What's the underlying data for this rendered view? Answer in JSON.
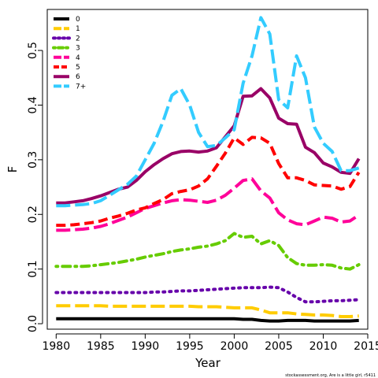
{
  "chart_data": {
    "type": "line",
    "xlabel": "Year",
    "ylabel": "F",
    "xlim": [
      1979,
      2015
    ],
    "ylim": [
      -0.01,
      0.575
    ],
    "xticks": [
      "1980",
      "1985",
      "1990",
      "1995",
      "2000",
      "2005",
      "2010",
      "2015"
    ],
    "yticks": [
      "0.0",
      "0.1",
      "0.2",
      "0.3",
      "0.4",
      "0.5"
    ],
    "legend_position": "top-left",
    "footnote": "stockassessment.org, Are is a little girl, r5411",
    "x": [
      1980,
      1981,
      1982,
      1983,
      1984,
      1985,
      1986,
      1987,
      1988,
      1989,
      1990,
      1991,
      1992,
      1993,
      1994,
      1995,
      1996,
      1997,
      1998,
      1999,
      2000,
      2001,
      2002,
      2003,
      2004,
      2005,
      2006,
      2007,
      2008,
      2009,
      2010,
      2011,
      2012,
      2013,
      2014
    ],
    "series": [
      {
        "name": "0",
        "color": "#000000",
        "dash": "solid",
        "values": [
          0.009,
          0.009,
          0.009,
          0.009,
          0.009,
          0.009,
          0.009,
          0.009,
          0.009,
          0.009,
          0.009,
          0.009,
          0.009,
          0.009,
          0.009,
          0.009,
          0.009,
          0.009,
          0.009,
          0.009,
          0.009,
          0.008,
          0.008,
          0.006,
          0.005,
          0.005,
          0.006,
          0.006,
          0.006,
          0.005,
          0.005,
          0.005,
          0.005,
          0.005,
          0.006
        ]
      },
      {
        "name": "1",
        "color": "#ffcc00",
        "dash": "long",
        "values": [
          0.033,
          0.033,
          0.033,
          0.033,
          0.033,
          0.033,
          0.032,
          0.032,
          0.032,
          0.032,
          0.032,
          0.032,
          0.032,
          0.032,
          0.032,
          0.032,
          0.031,
          0.031,
          0.031,
          0.03,
          0.029,
          0.029,
          0.029,
          0.025,
          0.02,
          0.02,
          0.02,
          0.018,
          0.017,
          0.016,
          0.016,
          0.015,
          0.013,
          0.013,
          0.014
        ]
      },
      {
        "name": "2",
        "color": "#6600aa",
        "dash": "dot",
        "values": [
          0.057,
          0.057,
          0.057,
          0.057,
          0.057,
          0.057,
          0.057,
          0.057,
          0.057,
          0.057,
          0.057,
          0.058,
          0.058,
          0.059,
          0.06,
          0.06,
          0.061,
          0.062,
          0.063,
          0.064,
          0.065,
          0.066,
          0.066,
          0.066,
          0.067,
          0.066,
          0.058,
          0.048,
          0.04,
          0.04,
          0.041,
          0.042,
          0.042,
          0.043,
          0.044
        ]
      },
      {
        "name": "3",
        "color": "#66cc00",
        "dash": "dotdash",
        "values": [
          0.105,
          0.105,
          0.105,
          0.105,
          0.106,
          0.108,
          0.11,
          0.112,
          0.115,
          0.118,
          0.122,
          0.125,
          0.128,
          0.132,
          0.135,
          0.137,
          0.14,
          0.142,
          0.146,
          0.152,
          0.165,
          0.158,
          0.16,
          0.146,
          0.152,
          0.143,
          0.121,
          0.11,
          0.107,
          0.107,
          0.108,
          0.107,
          0.102,
          0.1,
          0.108
        ]
      },
      {
        "name": "4",
        "color": "#ff0099",
        "dash": "long",
        "values": [
          0.171,
          0.171,
          0.172,
          0.173,
          0.175,
          0.178,
          0.183,
          0.189,
          0.195,
          0.203,
          0.211,
          0.216,
          0.221,
          0.225,
          0.227,
          0.226,
          0.224,
          0.222,
          0.226,
          0.235,
          0.248,
          0.262,
          0.265,
          0.243,
          0.23,
          0.203,
          0.19,
          0.183,
          0.181,
          0.188,
          0.195,
          0.193,
          0.186,
          0.188,
          0.199
        ]
      },
      {
        "name": "5",
        "color": "#ff0000",
        "dash": "dash",
        "values": [
          0.18,
          0.18,
          0.181,
          0.183,
          0.185,
          0.188,
          0.193,
          0.197,
          0.202,
          0.208,
          0.212,
          0.22,
          0.227,
          0.238,
          0.242,
          0.245,
          0.252,
          0.265,
          0.288,
          0.312,
          0.34,
          0.328,
          0.341,
          0.34,
          0.33,
          0.293,
          0.267,
          0.267,
          0.262,
          0.254,
          0.253,
          0.252,
          0.246,
          0.251,
          0.277
        ]
      },
      {
        "name": "6",
        "color": "#990066",
        "dash": "solid",
        "values": [
          0.221,
          0.221,
          0.223,
          0.225,
          0.229,
          0.234,
          0.24,
          0.246,
          0.25,
          0.262,
          0.278,
          0.291,
          0.302,
          0.311,
          0.315,
          0.316,
          0.314,
          0.316,
          0.322,
          0.342,
          0.362,
          0.416,
          0.417,
          0.43,
          0.413,
          0.376,
          0.366,
          0.365,
          0.323,
          0.313,
          0.294,
          0.287,
          0.277,
          0.275,
          0.302
        ]
      },
      {
        "name": "7+",
        "color": "#33ccff",
        "dash": "long",
        "values": [
          0.216,
          0.216,
          0.217,
          0.218,
          0.22,
          0.225,
          0.235,
          0.245,
          0.255,
          0.27,
          0.3,
          0.33,
          0.37,
          0.418,
          0.43,
          0.4,
          0.35,
          0.324,
          0.326,
          0.34,
          0.355,
          0.44,
          0.49,
          0.56,
          0.53,
          0.41,
          0.395,
          0.49,
          0.45,
          0.36,
          0.33,
          0.315,
          0.28,
          0.28,
          0.285
        ]
      }
    ]
  }
}
